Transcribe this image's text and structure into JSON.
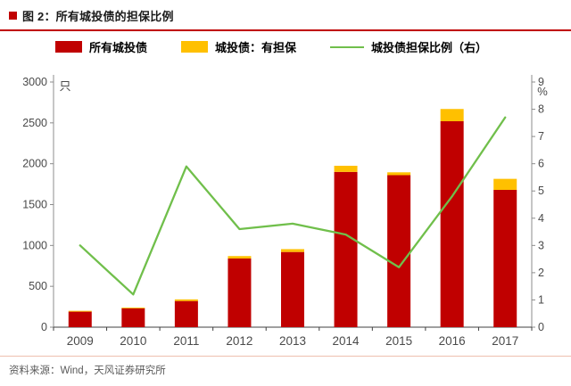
{
  "title": "图 2：所有城投债的担保比例",
  "footer": "资料来源：Wind，天风证券研究所",
  "colors": {
    "accent_red": "#C00000",
    "bar_all": "#C00000",
    "bar_guaranteed": "#FFC000",
    "ratio_line": "#70BF4B"
  },
  "chart_data": {
    "type": "bar",
    "subtype": "stacked-bars-with-line-combo",
    "title": "图 2：所有城投债的担保比例",
    "categories": [
      "2009",
      "2010",
      "2011",
      "2012",
      "2013",
      "2014",
      "2015",
      "2016",
      "2017"
    ],
    "series": [
      {
        "name": "所有城投债",
        "type": "bar",
        "axis": "left",
        "color": "#C00000",
        "values": [
          190,
          230,
          320,
          840,
          920,
          1900,
          1860,
          2520,
          1680
        ]
      },
      {
        "name": "城投债：有担保",
        "type": "bar",
        "axis": "left",
        "stacked_on_previous": true,
        "color": "#FFC000",
        "values": [
          10,
          10,
          20,
          30,
          35,
          75,
          35,
          150,
          135
        ]
      },
      {
        "name": "城投债担保比例（右）",
        "type": "line",
        "axis": "right",
        "color": "#70BF4B",
        "values": [
          3.0,
          1.2,
          5.9,
          3.6,
          3.8,
          3.4,
          2.2,
          4.8,
          7.7
        ]
      }
    ],
    "left_axis": {
      "unit": "只",
      "min": 0,
      "max": 3000,
      "step": 500
    },
    "right_axis": {
      "unit": "%",
      "min": 0,
      "max": 9,
      "step": 1
    },
    "grid": false,
    "legend_position": "top"
  }
}
